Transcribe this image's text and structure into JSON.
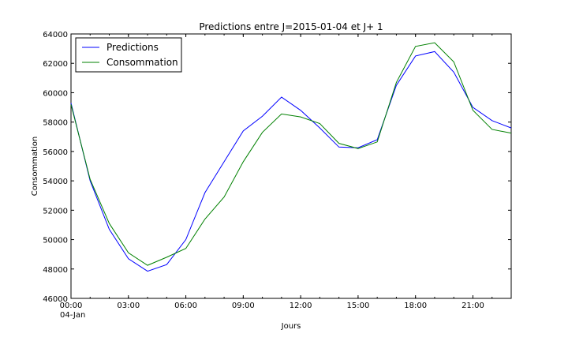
{
  "chart_data": {
    "type": "line",
    "title": "Predictions entre J=2015-01-04 et J+ 1",
    "xlabel": "Jours",
    "ylabel": "Consommation",
    "x": [
      "00:00",
      "01:00",
      "02:00",
      "03:00",
      "04:00",
      "05:00",
      "06:00",
      "07:00",
      "08:00",
      "09:00",
      "10:00",
      "11:00",
      "12:00",
      "13:00",
      "14:00",
      "15:00",
      "16:00",
      "17:00",
      "18:00",
      "19:00",
      "20:00",
      "21:00",
      "22:00",
      "23:00"
    ],
    "x_ticks": [
      {
        "hour": 0,
        "label": "00:00",
        "sublabel": "04-Jan"
      },
      {
        "hour": 3,
        "label": "03:00",
        "sublabel": ""
      },
      {
        "hour": 6,
        "label": "06:00",
        "sublabel": ""
      },
      {
        "hour": 9,
        "label": "09:00",
        "sublabel": ""
      },
      {
        "hour": 12,
        "label": "12:00",
        "sublabel": ""
      },
      {
        "hour": 15,
        "label": "15:00",
        "sublabel": ""
      },
      {
        "hour": 18,
        "label": "18:00",
        "sublabel": ""
      },
      {
        "hour": 21,
        "label": "21:00",
        "sublabel": ""
      }
    ],
    "xlim_hours": [
      0,
      23
    ],
    "ylim": [
      46000,
      64000
    ],
    "y_ticks": [
      46000,
      48000,
      50000,
      52000,
      54000,
      56000,
      58000,
      60000,
      62000,
      64000
    ],
    "grid": false,
    "legend_position": "top-left",
    "series": [
      {
        "name": "Predictions",
        "color": "#0000ff",
        "values": [
          59300,
          54000,
          50700,
          48700,
          47850,
          48300,
          50000,
          53200,
          55300,
          57400,
          58400,
          59700,
          58800,
          57600,
          56300,
          56250,
          56800,
          60500,
          62500,
          62800,
          61400,
          59000,
          58100,
          57600
        ]
      },
      {
        "name": "Consommation",
        "color": "#008000",
        "values": [
          59200,
          54100,
          51100,
          49100,
          48250,
          48800,
          49400,
          51400,
          52900,
          55300,
          57300,
          58550,
          58350,
          57900,
          56550,
          56200,
          56650,
          60700,
          63150,
          63400,
          62100,
          58800,
          57500,
          57250
        ]
      }
    ]
  }
}
